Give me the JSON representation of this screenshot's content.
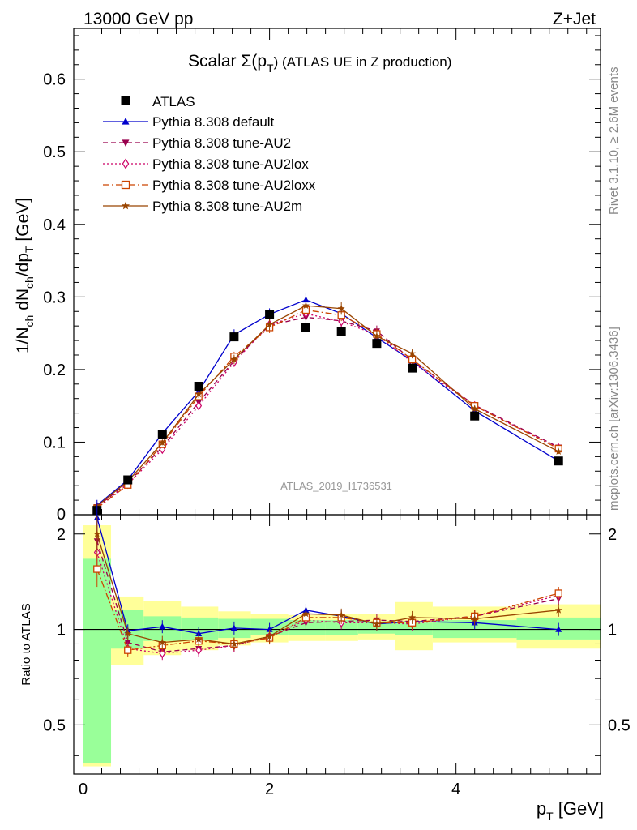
{
  "header": {
    "left": "13000 GeV pp",
    "right": "Z+Jet"
  },
  "chart_data": {
    "type": "line",
    "title_main": "Scalar Σ(p",
    "title_sub": "T",
    "title_end": ") (ATLAS UE in Z production)",
    "analysis_tag": "ATLAS_2019_I1736531",
    "side_text_top": "Rivet 3.1.10, ≥ 2.6M events",
    "side_text_bottom": "mcplots.cern.ch [arXiv:1306.3436]",
    "ylabel": "1/N_ch dN_ch/dp_T [GeV]",
    "ratio_ylabel": "Ratio to ATLAS",
    "xlabel": "p_T [GeV]",
    "xlim": [
      -0.1,
      5.55
    ],
    "ylim": [
      0,
      0.67
    ],
    "ratio_ylim": [
      0.35,
      2.3
    ],
    "log_ratio_axis": true,
    "x_ticks": [
      0,
      2,
      4
    ],
    "y_ticks": [
      0.1,
      0.2,
      0.3,
      0.4,
      0.5,
      0.6
    ],
    "ratio_ticks": [
      0.5,
      1,
      2
    ],
    "bin_edges": [
      0,
      0.3,
      0.65,
      1.05,
      1.45,
      1.8,
      2.2,
      2.6,
      2.95,
      3.35,
      3.75,
      4.65,
      5.55
    ],
    "data": {
      "name": "ATLAS",
      "x": [
        0.15,
        0.48,
        0.85,
        1.24,
        1.62,
        2.0,
        2.39,
        2.77,
        3.15,
        3.53,
        4.2,
        5.1
      ],
      "y": [
        0.006,
        0.048,
        0.11,
        0.177,
        0.245,
        0.276,
        0.258,
        0.252,
        0.236,
        0.202,
        0.136,
        0.074
      ],
      "band_total_lo": [
        0.37,
        0.77,
        0.83,
        0.86,
        0.89,
        0.91,
        0.92,
        0.92,
        0.93,
        0.86,
        0.91,
        0.87
      ],
      "band_total_hi": [
        2.13,
        1.27,
        1.23,
        1.18,
        1.14,
        1.12,
        1.11,
        1.12,
        1.12,
        1.22,
        1.18,
        1.2
      ],
      "band_stat_lo": [
        0.38,
        0.87,
        0.92,
        0.93,
        0.94,
        0.96,
        0.96,
        0.96,
        0.97,
        0.96,
        0.94,
        0.93
      ],
      "band_stat_hi": [
        1.67,
        1.15,
        1.1,
        1.09,
        1.08,
        1.08,
        1.07,
        1.07,
        1.06,
        1.05,
        1.07,
        1.09
      ]
    },
    "series": [
      {
        "name": "Pythia 8.308 default",
        "color": "#0000cc",
        "dash": "",
        "marker": "triangle-up",
        "y": [
          0.013,
          0.048,
          0.112,
          0.17,
          0.248,
          0.276,
          0.296,
          0.277,
          0.244,
          0.212,
          0.143,
          0.074
        ],
        "ratio": [
          2.25,
          0.99,
          1.02,
          0.97,
          1.01,
          1.0,
          1.15,
          1.1,
          1.04,
          1.06,
          1.05,
          1.0
        ]
      },
      {
        "name": "Pythia 8.308 tune-AU2",
        "color": "#99004d",
        "dash": "6,4",
        "marker": "triangle-down",
        "y": [
          0.011,
          0.044,
          0.093,
          0.155,
          0.212,
          0.261,
          0.272,
          0.267,
          0.253,
          0.213,
          0.151,
          0.093
        ],
        "ratio": [
          1.9,
          0.91,
          0.85,
          0.87,
          0.89,
          0.95,
          1.05,
          1.06,
          1.07,
          1.06,
          1.1,
          1.25
        ]
      },
      {
        "name": "Pythia 8.308 tune-AU2lox",
        "color": "#cc0066",
        "dash": "2,3",
        "marker": "diamond-open",
        "y": [
          0.01,
          0.042,
          0.09,
          0.15,
          0.21,
          0.262,
          0.277,
          0.266,
          0.248,
          0.21,
          0.15,
          0.092
        ],
        "ratio": [
          1.75,
          0.87,
          0.84,
          0.86,
          0.89,
          0.95,
          1.07,
          1.05,
          1.05,
          1.04,
          1.1,
          1.28
        ]
      },
      {
        "name": "Pythia 8.308 tune-AU2loxx",
        "color": "#cc4400",
        "dash": "8,3,2,3",
        "marker": "square-open",
        "y": [
          0.009,
          0.041,
          0.097,
          0.163,
          0.218,
          0.258,
          0.282,
          0.275,
          0.249,
          0.214,
          0.15,
          0.091
        ],
        "ratio": [
          1.55,
          0.86,
          0.89,
          0.92,
          0.9,
          0.94,
          1.09,
          1.09,
          1.05,
          1.05,
          1.1,
          1.3
        ]
      },
      {
        "name": "Pythia 8.308 tune-AU2m",
        "color": "#994400",
        "dash": "",
        "marker": "star",
        "y": [
          0.012,
          0.046,
          0.099,
          0.166,
          0.214,
          0.262,
          0.288,
          0.284,
          0.246,
          0.222,
          0.146,
          0.087
        ],
        "ratio": [
          2.0,
          0.97,
          0.91,
          0.93,
          0.9,
          0.95,
          1.12,
          1.11,
          1.04,
          1.09,
          1.08,
          1.15
        ]
      }
    ]
  }
}
